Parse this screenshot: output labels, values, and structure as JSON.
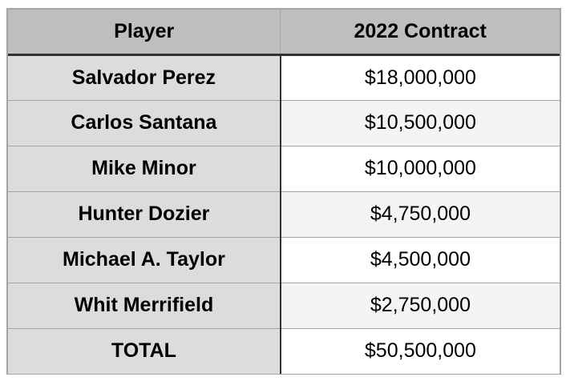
{
  "chart_data": {
    "type": "table",
    "columns": [
      "Player",
      "2022 Contract"
    ],
    "rows": [
      {
        "player": "Salvador Perez",
        "contract": "$18,000,000",
        "value": 18000000
      },
      {
        "player": "Carlos Santana",
        "contract": "$10,500,000",
        "value": 10500000
      },
      {
        "player": "Mike Minor",
        "contract": "$10,000,000",
        "value": 10000000
      },
      {
        "player": "Hunter Dozier",
        "contract": "$4,750,000",
        "value": 4750000
      },
      {
        "player": "Michael A. Taylor",
        "contract": "$4,500,000",
        "value": 4500000
      },
      {
        "player": "Whit Merrifield",
        "contract": "$2,750,000",
        "value": 2750000
      },
      {
        "player": "TOTAL",
        "contract": "$50,500,000",
        "value": 50500000
      }
    ],
    "layout": {
      "header_bg": "#bdbfbf",
      "player_col_bg": "#dcdcdc",
      "contract_col_bg": "#ffffff",
      "contract_col_alt_bg": "#f4f4f4",
      "dark_divider": "#323232",
      "light_divider": "#a4a4a4"
    }
  }
}
